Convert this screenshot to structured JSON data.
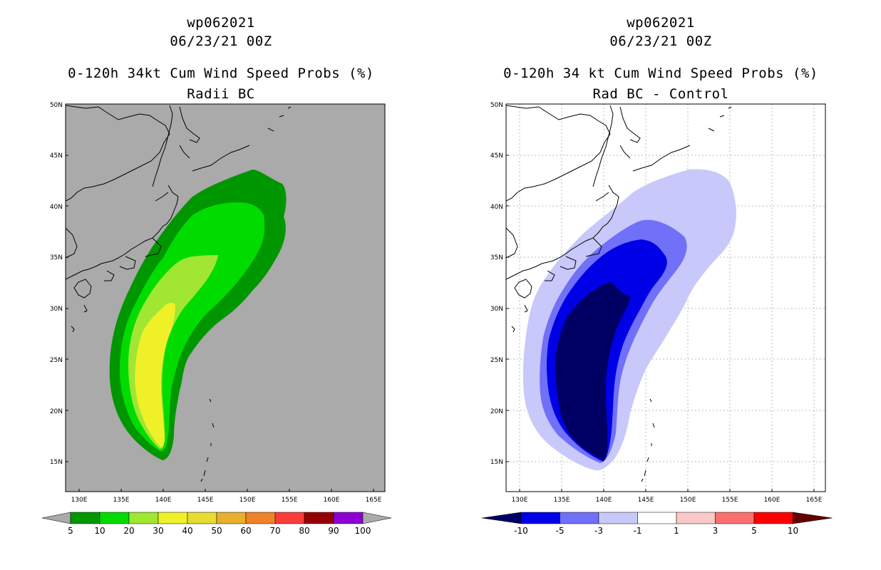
{
  "left": {
    "storm_id": "wp062021",
    "datetime": "06/23/21 00Z",
    "product": "0-120h 34kt Cum Wind Speed Probs (%)",
    "subtitle": "Radii BC",
    "map_background": "#aaaaaa",
    "colorbar": {
      "labels": [
        "5",
        "10",
        "20",
        "30",
        "40",
        "50",
        "60",
        "70",
        "80",
        "90",
        "100"
      ],
      "colors": [
        "#009600",
        "#00dc00",
        "#a0e632",
        "#f0f028",
        "#e6dc32",
        "#e6af2d",
        "#f08228",
        "#fa3c3c",
        "#960000",
        "#8c00d2"
      ],
      "end_low": "#aaaaaa",
      "end_high": "#aaaaaa"
    }
  },
  "right": {
    "storm_id": "wp062021",
    "datetime": "06/23/21 00Z",
    "product": "0-120h 34 kt Cum Wind Speed Probs (%)",
    "subtitle": "Rad BC - Control",
    "map_background": "#ffffff",
    "colorbar": {
      "labels": [
        "-10",
        "-5",
        "-3",
        "-1",
        "1",
        "3",
        "5",
        "10"
      ],
      "colors": [
        "#0000e6",
        "#7070f8",
        "#c8c8fa",
        "#ffffff",
        "#fac8c8",
        "#fa7070",
        "#fa0000"
      ],
      "end_low": "#000064",
      "end_high": "#640000"
    }
  },
  "axes": {
    "lon_labels": [
      "130E",
      "135E",
      "140E",
      "145E",
      "150E",
      "155E",
      "160E",
      "165E"
    ],
    "lat_labels": [
      "50N",
      "45N",
      "40N",
      "35N",
      "30N",
      "25N",
      "20N",
      "15N"
    ],
    "lon_range": [
      128,
      166
    ],
    "lat_range": [
      12.5,
      50
    ]
  }
}
